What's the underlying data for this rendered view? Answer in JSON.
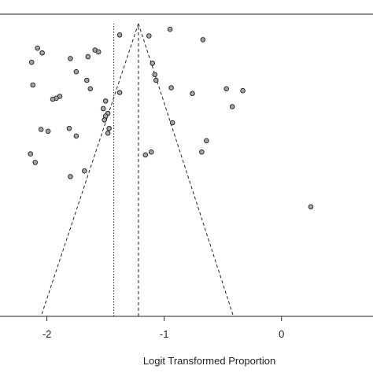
{
  "chart_data": {
    "type": "scatter",
    "title": "",
    "xlabel": "Logit Transformed Proportion",
    "ylabel": "",
    "xlim": [
      -2.4,
      0.78
    ],
    "x_ticks": [
      -2,
      -1,
      0
    ],
    "x_tick_labels": [
      "-2",
      "-1",
      "0"
    ],
    "ylim": [
      0,
      1
    ],
    "y_ticks_shown": false,
    "grid": false,
    "legend": "none",
    "point_fill": "#a6a6a6",
    "point_stroke": "#2b2b2b",
    "line_color": "#222222",
    "reference_lines": [
      {
        "kind": "vertical-dotted",
        "x": -1.43,
        "y_from": 0.0313,
        "y_to": 1.0
      },
      {
        "kind": "vertical-dashed",
        "x": -1.22,
        "y_from": 0.0313,
        "y_to": 1.0
      }
    ],
    "funnel": {
      "apex": {
        "x": -1.22,
        "y": 1.0
      },
      "base_left": {
        "x": -2.05,
        "y": 0.0313
      },
      "base_right": {
        "x": -0.41,
        "y": 0.0313
      }
    },
    "points": [
      {
        "x": -2.08,
        "y": 0.9188
      },
      {
        "x": -2.04,
        "y": 0.9031
      },
      {
        "x": -2.13,
        "y": 0.8719
      },
      {
        "x": -1.38,
        "y": 0.9625
      },
      {
        "x": -1.13,
        "y": 0.9594
      },
      {
        "x": -0.95,
        "y": 0.9813
      },
      {
        "x": -0.67,
        "y": 0.9469
      },
      {
        "x": -1.59,
        "y": 0.9125
      },
      {
        "x": -1.56,
        "y": 0.9063
      },
      {
        "x": -1.65,
        "y": 0.8906
      },
      {
        "x": -1.8,
        "y": 0.8844
      },
      {
        "x": -1.1,
        "y": 0.8688
      },
      {
        "x": -1.75,
        "y": 0.8406
      },
      {
        "x": -1.08,
        "y": 0.8313
      },
      {
        "x": -1.07,
        "y": 0.8125
      },
      {
        "x": -1.66,
        "y": 0.8125
      },
      {
        "x": -2.12,
        "y": 0.7969
      },
      {
        "x": -1.63,
        "y": 0.7844
      },
      {
        "x": -0.94,
        "y": 0.7875
      },
      {
        "x": -0.47,
        "y": 0.7844
      },
      {
        "x": -0.33,
        "y": 0.7781
      },
      {
        "x": -1.38,
        "y": 0.7719
      },
      {
        "x": -0.76,
        "y": 0.7688
      },
      {
        "x": -1.89,
        "y": 0.7594
      },
      {
        "x": -1.92,
        "y": 0.7531
      },
      {
        "x": -1.95,
        "y": 0.75
      },
      {
        "x": -1.5,
        "y": 0.7438
      },
      {
        "x": -0.42,
        "y": 0.725
      },
      {
        "x": -1.52,
        "y": 0.7188
      },
      {
        "x": -1.48,
        "y": 0.7031
      },
      {
        "x": -1.5,
        "y": 0.6938
      },
      {
        "x": -1.51,
        "y": 0.6813
      },
      {
        "x": -0.93,
        "y": 0.6719
      },
      {
        "x": -2.05,
        "y": 0.65
      },
      {
        "x": -1.81,
        "y": 0.6531
      },
      {
        "x": -1.99,
        "y": 0.6438
      },
      {
        "x": -1.47,
        "y": 0.6531
      },
      {
        "x": -1.48,
        "y": 0.6375
      },
      {
        "x": -1.75,
        "y": 0.6281
      },
      {
        "x": -0.64,
        "y": 0.6125
      },
      {
        "x": -0.68,
        "y": 0.575
      },
      {
        "x": -1.11,
        "y": 0.575
      },
      {
        "x": -1.16,
        "y": 0.5656
      },
      {
        "x": -2.14,
        "y": 0.5688
      },
      {
        "x": -2.1,
        "y": 0.5406
      },
      {
        "x": -1.68,
        "y": 0.5125
      },
      {
        "x": -1.8,
        "y": 0.4938
      },
      {
        "x": 0.25,
        "y": 0.3938
      }
    ]
  }
}
